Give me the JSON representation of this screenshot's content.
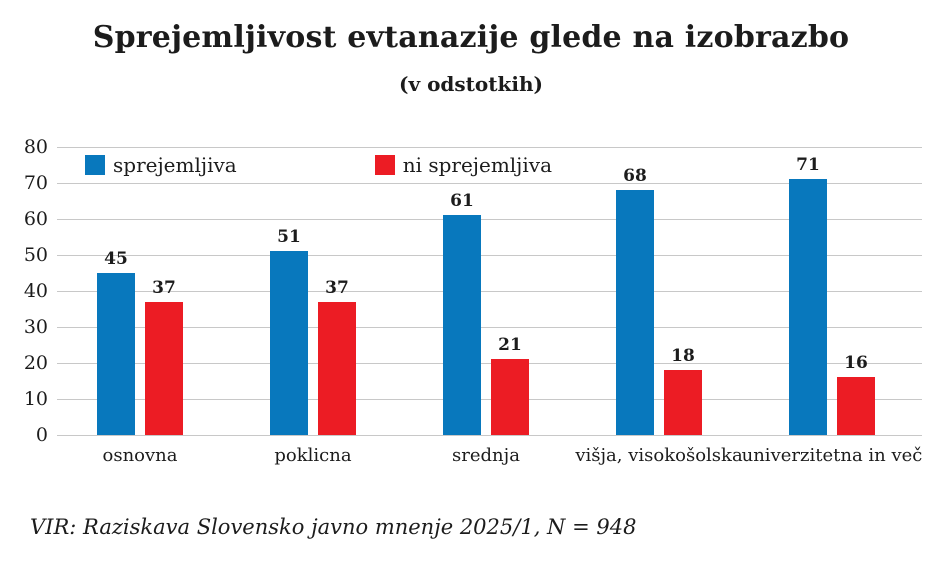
{
  "chart": {
    "title": "Sprejemljivost evtanazije glede na izobrazbo",
    "subtitle": "(v odstotkih)",
    "source": "VIR: Raziskava Slovensko javno mnenje 2025/1, N = 948",
    "colors": {
      "accept_blue": "#0878BD",
      "reject_red": "#EC1C24",
      "gridline": "#C8C8C8",
      "text": "#1C1C1C"
    }
  },
  "chart_data": {
    "type": "bar",
    "title": "Sprejemljivost evtanazije glede na izobrazbo",
    "subtitle": "(v odstotkih)",
    "categories": [
      "osnovna",
      "poklicna",
      "srednja",
      "višja, visokošolska",
      "univerzitetna in več"
    ],
    "series": [
      {
        "name": "sprejemljiva",
        "color": "#0878BD",
        "values": [
          45,
          51,
          61,
          68,
          71
        ]
      },
      {
        "name": "ni sprejemljiva",
        "color": "#EC1C24",
        "values": [
          37,
          37,
          21,
          18,
          16
        ]
      }
    ],
    "xlabel": "",
    "ylabel": "",
    "ylim": [
      0,
      80
    ],
    "yticks": [
      0,
      10,
      20,
      30,
      40,
      50,
      60,
      70,
      80
    ],
    "grid": true,
    "legend_position": "top-left-inside",
    "value_labels": true,
    "source": "VIR: Raziskava Slovensko javno mnenje 2025/1, N = 948"
  }
}
